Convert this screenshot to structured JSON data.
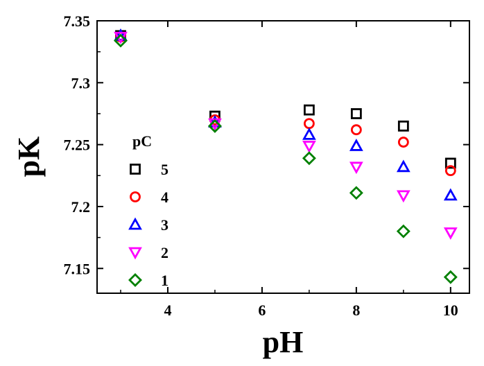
{
  "chart_data": {
    "type": "scatter",
    "xlabel": "pH",
    "ylabel": "pK",
    "xlim": [
      2.5,
      10.4
    ],
    "ylim": [
      7.13,
      7.35
    ],
    "xticks": [
      4,
      6,
      8,
      10
    ],
    "yticks": [
      7.15,
      7.2,
      7.25,
      7.3,
      7.35
    ],
    "ytick_labels": [
      "7.15",
      "7.2",
      "7.25",
      "7.3",
      "7.35"
    ],
    "grid": false,
    "legend": {
      "title": "pC",
      "position": "center-left"
    },
    "series": [
      {
        "name": "5",
        "marker": "square",
        "color": "#000000",
        "x": [
          3,
          5,
          7,
          8,
          9,
          10
        ],
        "y": [
          7.338,
          7.273,
          7.278,
          7.275,
          7.265,
          7.235
        ]
      },
      {
        "name": "4",
        "marker": "circle",
        "color": "#ff0000",
        "x": [
          3,
          5,
          7,
          8,
          9,
          10
        ],
        "y": [
          7.337,
          7.27,
          7.267,
          7.262,
          7.252,
          7.229
        ]
      },
      {
        "name": "3",
        "marker": "triangle-up",
        "color": "#0000ff",
        "x": [
          3,
          5,
          7,
          8,
          9,
          10
        ],
        "y": [
          7.338,
          7.268,
          7.258,
          7.249,
          7.232,
          7.209
        ]
      },
      {
        "name": "2",
        "marker": "triangle-down",
        "color": "#ff00ff",
        "x": [
          3,
          5,
          7,
          8,
          9,
          10
        ],
        "y": [
          7.337,
          7.267,
          7.249,
          7.232,
          7.209,
          7.179
        ]
      },
      {
        "name": "1",
        "marker": "diamond",
        "color": "#008000",
        "x": [
          3,
          5,
          7,
          8,
          9,
          10
        ],
        "y": [
          7.334,
          7.265,
          7.239,
          7.211,
          7.18,
          7.143
        ]
      }
    ]
  }
}
